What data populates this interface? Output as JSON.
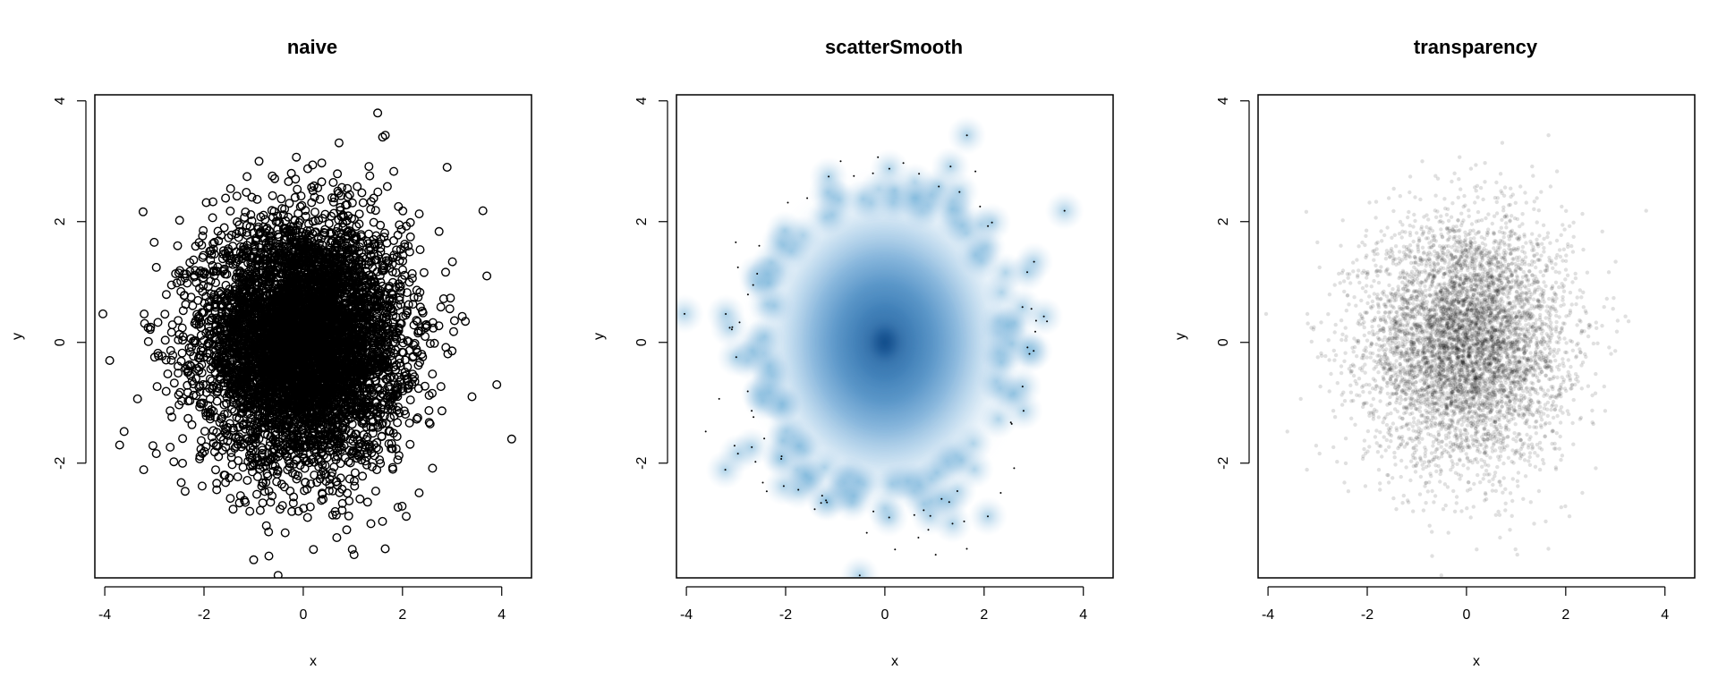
{
  "chart_data": [
    {
      "type": "scatter",
      "title": "naive",
      "xlabel": "x",
      "ylabel": "y",
      "xlim": [
        -4.2,
        4.6
      ],
      "ylim": [
        -3.9,
        4.1
      ],
      "x_ticks": [
        "-4",
        "-2",
        "0",
        "2",
        "4"
      ],
      "y_ticks": [
        "-2",
        "0",
        "2",
        "4"
      ],
      "marker": "open-circle",
      "point_color": "#000000",
      "series": [
        {
          "x": [
            0.0,
            -3.9,
            4.2,
            3.7,
            -1.0,
            1.5,
            3.9,
            -3.7,
            1.6,
            3.4,
            2.9
          ],
          "y": [
            0.0,
            -0.3,
            -1.6,
            1.1,
            -3.6,
            3.8,
            -0.7,
            -1.7,
            3.4,
            -0.9,
            2.9
          ]
        }
      ],
      "distribution": {
        "kind": "bivariate normal",
        "mean": [
          0,
          0
        ],
        "sd": [
          1,
          1
        ]
      }
    },
    {
      "type": "heatmap",
      "title": "scatterSmooth",
      "xlabel": "x",
      "ylabel": "y",
      "xlim": [
        -4.2,
        4.6
      ],
      "ylim": [
        -3.9,
        4.1
      ],
      "x_ticks": [
        "-4",
        "-2",
        "0",
        "2",
        "4"
      ],
      "y_ticks": [
        "-2",
        "0",
        "2",
        "4"
      ],
      "color_low": "#ffffff",
      "color_high": "#08306b",
      "color_mid": "#2171b5",
      "distribution": {
        "kind": "2d kernel density",
        "mean": [
          0,
          0
        ],
        "sd": [
          1,
          1
        ]
      }
    },
    {
      "type": "scatter",
      "title": "transparency",
      "xlabel": "x",
      "ylabel": "y",
      "xlim": [
        -4.2,
        4.6
      ],
      "ylim": [
        -3.9,
        4.1
      ],
      "x_ticks": [
        "-4",
        "-2",
        "0",
        "2",
        "4"
      ],
      "y_ticks": [
        "-2",
        "0",
        "2",
        "4"
      ],
      "marker": "filled-dot-transparent",
      "point_color": "#000000",
      "point_alpha": 0.12,
      "distribution": {
        "kind": "bivariate normal",
        "mean": [
          0,
          0
        ],
        "sd": [
          1,
          1
        ]
      }
    }
  ]
}
